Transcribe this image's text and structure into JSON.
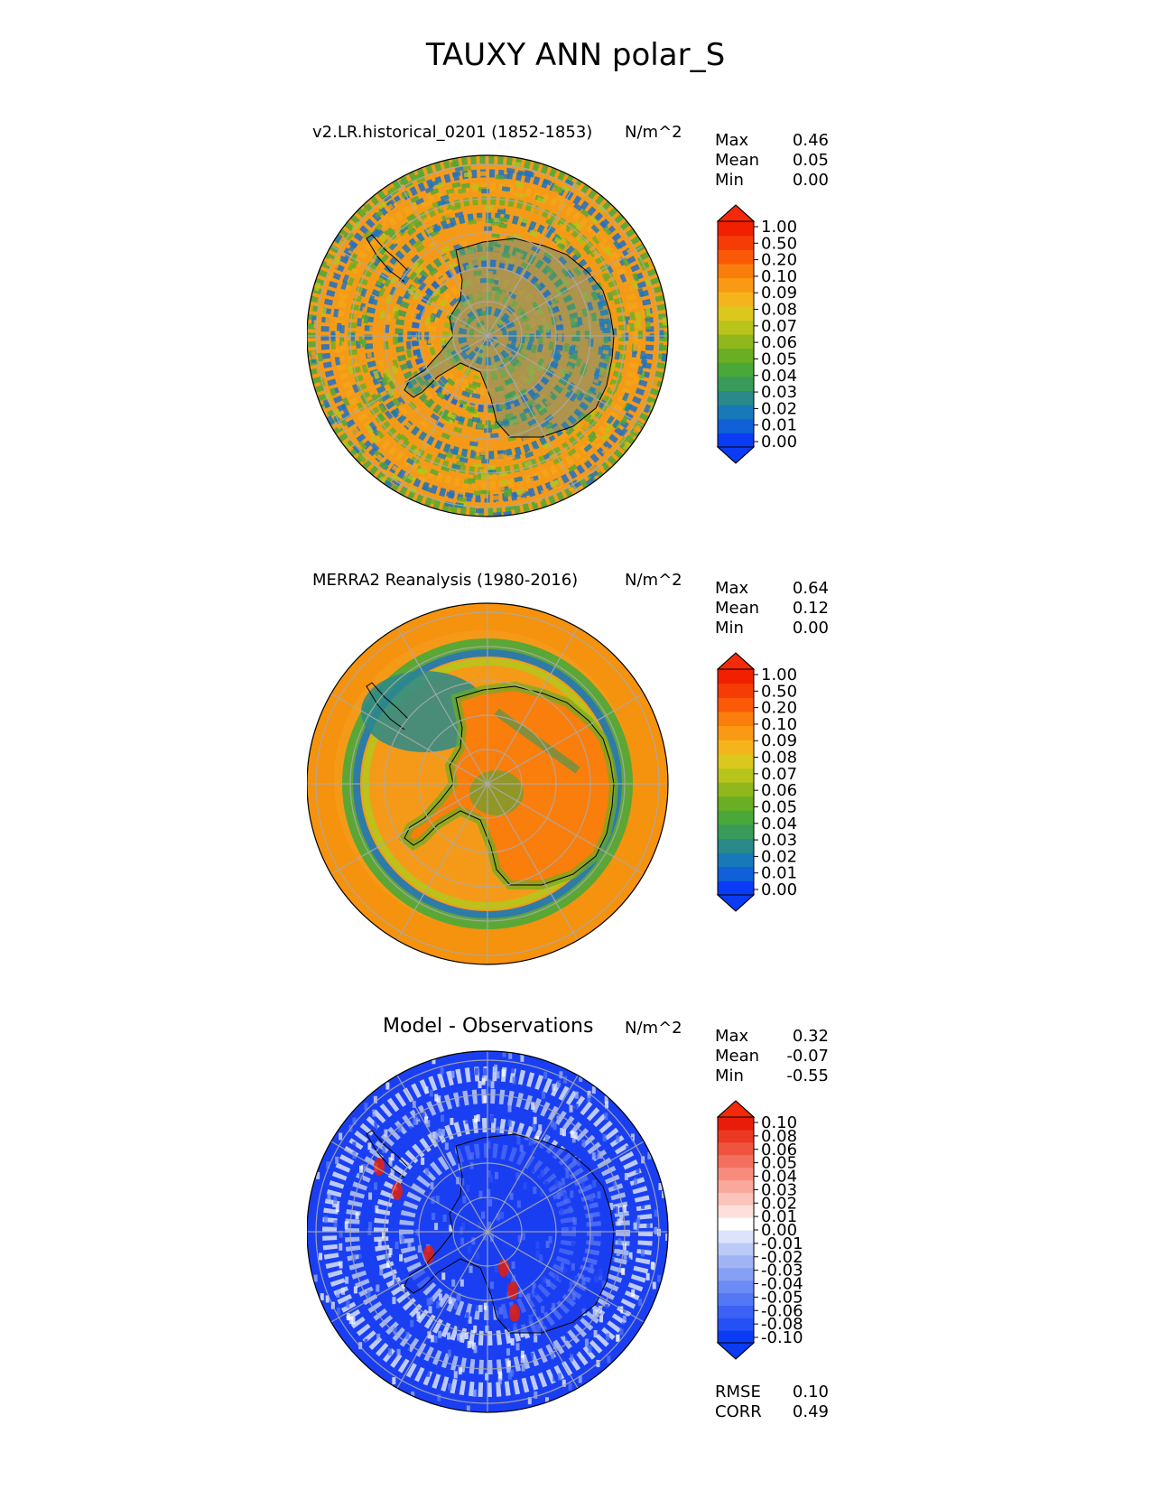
{
  "figure_title": "TAUXY ANN polar_S",
  "panels": [
    {
      "title": "v2.LR.historical_0201 (1852-1853)",
      "units": "N/m^2",
      "stats": [
        {
          "label": "Max",
          "value": "0.46"
        },
        {
          "label": "Mean",
          "value": "0.05"
        },
        {
          "label": "Min",
          "value": "0.00"
        }
      ],
      "colorbar": {
        "ticks": [
          "1.00",
          "0.50",
          "0.20",
          "0.10",
          "0.09",
          "0.08",
          "0.07",
          "0.06",
          "0.05",
          "0.04",
          "0.03",
          "0.02",
          "0.01",
          "0.00"
        ],
        "colors": [
          "#0a3cf5",
          "#1060d8",
          "#1878b8",
          "#2a8a8a",
          "#3a9a5a",
          "#4aa83a",
          "#6aae24",
          "#90b81c",
          "#b8c41c",
          "#dcc81c",
          "#f5b41c",
          "#fa9a14",
          "#fa7e0c",
          "#fa5a08",
          "#f53c04",
          "#f02000"
        ],
        "extend_low": "#0a3cf5",
        "extend_high": "#f52a0a"
      },
      "map_style": "model"
    },
    {
      "title": "MERRA2 Reanalysis (1980-2016)",
      "units": "N/m^2",
      "stats": [
        {
          "label": "Max",
          "value": "0.64"
        },
        {
          "label": "Mean",
          "value": "0.12"
        },
        {
          "label": "Min",
          "value": "0.00"
        }
      ],
      "colorbar": {
        "ticks": [
          "1.00",
          "0.50",
          "0.20",
          "0.10",
          "0.09",
          "0.08",
          "0.07",
          "0.06",
          "0.05",
          "0.04",
          "0.03",
          "0.02",
          "0.01",
          "0.00"
        ],
        "colors": [
          "#0a3cf5",
          "#1060d8",
          "#1878b8",
          "#2a8a8a",
          "#3a9a5a",
          "#4aa83a",
          "#6aae24",
          "#90b81c",
          "#b8c41c",
          "#dcc81c",
          "#f5b41c",
          "#fa9a14",
          "#fa7e0c",
          "#fa5a08",
          "#f53c04",
          "#f02000"
        ],
        "extend_low": "#0a3cf5",
        "extend_high": "#f52a0a"
      },
      "map_style": "obs"
    },
    {
      "title": "Model - Observations",
      "units": "N/m^2",
      "stats": [
        {
          "label": "Max",
          "value": "0.32"
        },
        {
          "label": "Mean",
          "value": "-0.07"
        },
        {
          "label": "Min",
          "value": "-0.55"
        }
      ],
      "colorbar": {
        "ticks": [
          "0.10",
          "0.08",
          "0.06",
          "0.05",
          "0.04",
          "0.03",
          "0.02",
          "0.01",
          "0.00",
          "-0.01",
          "-0.02",
          "-0.03",
          "-0.04",
          "-0.05",
          "-0.06",
          "-0.08",
          "-0.10"
        ],
        "colors": [
          "#0a3cf5",
          "#2450f5",
          "#3c62f5",
          "#5478f5",
          "#6c8cf5",
          "#86a0f5",
          "#a0b4f5",
          "#bccaf8",
          "#dce4fb",
          "#ffffff",
          "#fde0dc",
          "#fbc4bc",
          "#f9a89a",
          "#f78c7c",
          "#f4705e",
          "#f05440",
          "#ec3822",
          "#e81c08"
        ],
        "extend_low": "#0a3cf5",
        "extend_high": "#f22a0a"
      },
      "map_style": "diff",
      "extra_stats": [
        {
          "label": "RMSE",
          "value": "0.10"
        },
        {
          "label": "CORR",
          "value": "0.49"
        }
      ]
    }
  ],
  "chart_data": [
    {
      "type": "heatmap",
      "title": "v2.LR.historical_0201 (1852-1853)",
      "projection": "south polar stereographic",
      "units": "N/m^2",
      "colorbar_levels": [
        0.0,
        0.01,
        0.02,
        0.03,
        0.04,
        0.05,
        0.06,
        0.07,
        0.08,
        0.09,
        0.1,
        0.2,
        0.5,
        1.0
      ],
      "max": 0.46,
      "mean": 0.05,
      "min": 0.0
    },
    {
      "type": "heatmap",
      "title": "MERRA2 Reanalysis (1980-2016)",
      "projection": "south polar stereographic",
      "units": "N/m^2",
      "colorbar_levels": [
        0.0,
        0.01,
        0.02,
        0.03,
        0.04,
        0.05,
        0.06,
        0.07,
        0.08,
        0.09,
        0.1,
        0.2,
        0.5,
        1.0
      ],
      "max": 0.64,
      "mean": 0.12,
      "min": 0.0
    },
    {
      "type": "heatmap",
      "title": "Model - Observations",
      "projection": "south polar stereographic",
      "units": "N/m^2",
      "colorbar_levels": [
        -0.1,
        -0.08,
        -0.06,
        -0.05,
        -0.04,
        -0.03,
        -0.02,
        -0.01,
        0.0,
        0.01,
        0.02,
        0.03,
        0.04,
        0.05,
        0.06,
        0.08,
        0.1
      ],
      "max": 0.32,
      "mean": -0.07,
      "min": -0.55,
      "rmse": 0.1,
      "corr": 0.49
    }
  ]
}
